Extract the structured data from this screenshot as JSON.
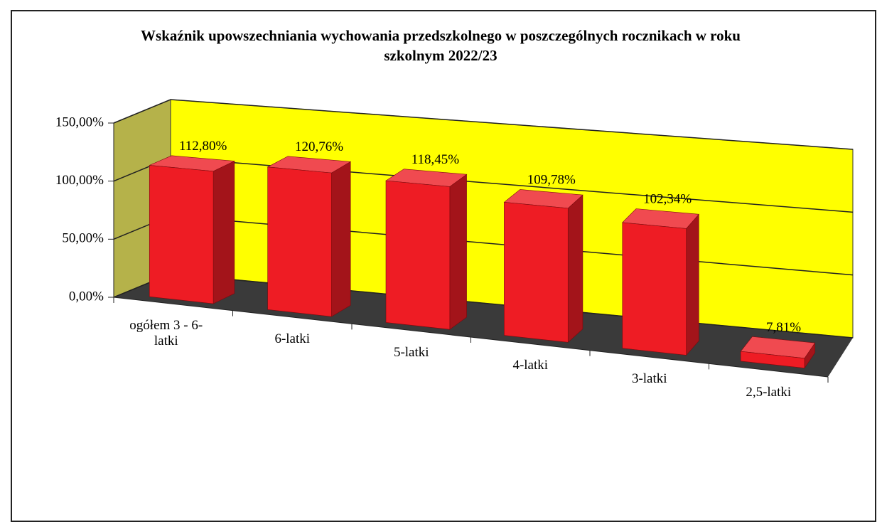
{
  "chart_data": {
    "type": "bar3d",
    "title": "Wskaźnik upowszechniania wychowania przedszkolnego w poszczególnych rocznikach w roku szkolnym 2022/23",
    "categories": [
      "ogółem 3 - 6-latki",
      "6-latki",
      "5-latki",
      "4-latki",
      "3-latki",
      "2,5-latki"
    ],
    "values": [
      112.8,
      120.76,
      118.45,
      109.78,
      102.34,
      7.81
    ],
    "value_labels": [
      "112,80%",
      "120,76%",
      "118,45%",
      "109,78%",
      "102,34%",
      "7,81%"
    ],
    "color": "#ee1c24",
    "ylim": [
      0,
      150
    ],
    "yticks": [
      {
        "value": 0,
        "label": "0,00%"
      },
      {
        "value": 50,
        "label": "50,00%"
      },
      {
        "value": 100,
        "label": "100,00%"
      },
      {
        "value": 150,
        "label": "150,00%"
      }
    ],
    "grid": true
  }
}
